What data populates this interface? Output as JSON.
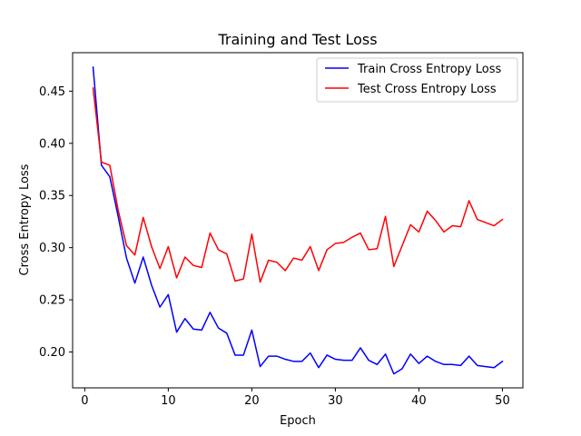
{
  "chart_data": {
    "type": "line",
    "title": "Training and Test Loss",
    "xlabel": "Epoch",
    "ylabel": "Cross Entropy Loss",
    "xlim": [
      -1.45,
      52.45
    ],
    "ylim": [
      0.1656,
      0.4869
    ],
    "xticks": [
      0,
      10,
      20,
      30,
      40,
      50
    ],
    "yticks": [
      0.2,
      0.25,
      0.3,
      0.35,
      0.4,
      0.45
    ],
    "ytick_labels": [
      "0.20",
      "0.25",
      "0.30",
      "0.35",
      "0.40",
      "0.45"
    ],
    "grid": false,
    "legend_position": "top-right",
    "x": [
      1,
      2,
      3,
      4,
      5,
      6,
      7,
      8,
      9,
      10,
      11,
      12,
      13,
      14,
      15,
      16,
      17,
      18,
      19,
      20,
      21,
      22,
      23,
      24,
      25,
      26,
      27,
      28,
      29,
      30,
      31,
      32,
      33,
      34,
      35,
      36,
      37,
      38,
      39,
      40,
      41,
      42,
      43,
      44,
      45,
      46,
      47,
      48,
      49,
      50
    ],
    "series": [
      {
        "name": "Train Cross Entropy Loss",
        "color": "#0000ff",
        "values": [
          0.473,
          0.379,
          0.368,
          0.33,
          0.29,
          0.266,
          0.291,
          0.264,
          0.243,
          0.255,
          0.219,
          0.232,
          0.222,
          0.221,
          0.238,
          0.223,
          0.218,
          0.197,
          0.197,
          0.221,
          0.186,
          0.196,
          0.196,
          0.193,
          0.191,
          0.191,
          0.199,
          0.185,
          0.197,
          0.193,
          0.192,
          0.192,
          0.204,
          0.192,
          0.188,
          0.198,
          0.179,
          0.184,
          0.198,
          0.189,
          0.196,
          0.191,
          0.188,
          0.188,
          0.187,
          0.196,
          0.187,
          0.186,
          0.185,
          0.191
        ]
      },
      {
        "name": "Test Cross Entropy Loss",
        "color": "#ff0000",
        "values": [
          0.453,
          0.382,
          0.379,
          0.336,
          0.302,
          0.293,
          0.329,
          0.301,
          0.28,
          0.301,
          0.271,
          0.291,
          0.283,
          0.281,
          0.314,
          0.298,
          0.294,
          0.268,
          0.27,
          0.313,
          0.267,
          0.288,
          0.286,
          0.278,
          0.29,
          0.288,
          0.301,
          0.278,
          0.298,
          0.304,
          0.305,
          0.31,
          0.314,
          0.298,
          0.299,
          0.33,
          0.282,
          0.302,
          0.322,
          0.315,
          0.335,
          0.326,
          0.315,
          0.321,
          0.32,
          0.345,
          0.327,
          0.324,
          0.321,
          0.327
        ]
      }
    ]
  }
}
